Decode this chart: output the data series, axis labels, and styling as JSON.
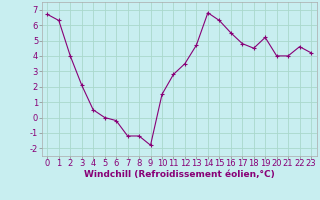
{
  "x": [
    0,
    1,
    2,
    3,
    4,
    5,
    6,
    7,
    8,
    9,
    10,
    11,
    12,
    13,
    14,
    15,
    16,
    17,
    18,
    19,
    20,
    21,
    22,
    23
  ],
  "y": [
    6.7,
    6.3,
    4.0,
    2.1,
    0.5,
    0.0,
    -0.2,
    -1.2,
    -1.2,
    -1.8,
    1.5,
    2.8,
    3.5,
    4.7,
    6.8,
    6.3,
    5.5,
    4.8,
    4.5,
    5.2,
    4.0,
    4.0,
    4.6,
    4.2
  ],
  "xlabel": "Windchill (Refroidissement éolien,°C)",
  "ylim": [
    -2.5,
    7.5
  ],
  "xlim": [
    -0.5,
    23.5
  ],
  "line_color": "#880077",
  "marker": "+",
  "bg_color": "#c8eef0",
  "grid_color": "#aad8cc",
  "tick_fontsize": 6,
  "xlabel_fontsize": 6.5,
  "yticks": [
    -2,
    -1,
    0,
    1,
    2,
    3,
    4,
    5,
    6,
    7
  ],
  "xticks": [
    0,
    1,
    2,
    3,
    4,
    5,
    6,
    7,
    8,
    9,
    10,
    11,
    12,
    13,
    14,
    15,
    16,
    17,
    18,
    19,
    20,
    21,
    22,
    23
  ]
}
